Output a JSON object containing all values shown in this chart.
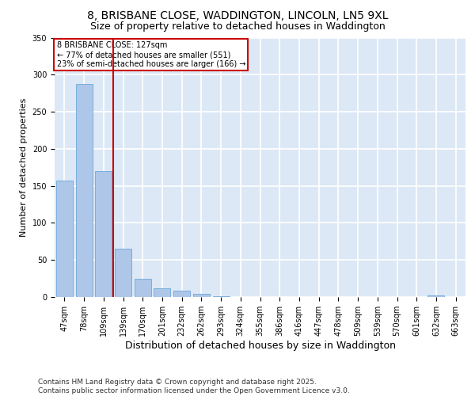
{
  "title_line1": "8, BRISBANE CLOSE, WADDINGTON, LINCOLN, LN5 9XL",
  "title_line2": "Size of property relative to detached houses in Waddington",
  "xlabel": "Distribution of detached houses by size in Waddington",
  "ylabel": "Number of detached properties",
  "categories": [
    "47sqm",
    "78sqm",
    "109sqm",
    "139sqm",
    "170sqm",
    "201sqm",
    "232sqm",
    "262sqm",
    "293sqm",
    "324sqm",
    "355sqm",
    "386sqm",
    "416sqm",
    "447sqm",
    "478sqm",
    "509sqm",
    "539sqm",
    "570sqm",
    "601sqm",
    "632sqm",
    "663sqm"
  ],
  "values": [
    157,
    287,
    170,
    65,
    25,
    12,
    9,
    4,
    1,
    0,
    0,
    0,
    0,
    0,
    0,
    0,
    0,
    0,
    0,
    2,
    0
  ],
  "bar_color": "#aec6e8",
  "bar_edge_color": "#5a9fd4",
  "vline_x": 2.5,
  "vline_color": "#cc0000",
  "annotation_text": "8 BRISBANE CLOSE: 127sqm\n← 77% of detached houses are smaller (551)\n23% of semi-detached houses are larger (166) →",
  "annotation_box_color": "#cc0000",
  "ylim": [
    0,
    350
  ],
  "yticks": [
    0,
    50,
    100,
    150,
    200,
    250,
    300,
    350
  ],
  "background_color": "#dce8f5",
  "grid_color": "#ffffff",
  "footer_text": "Contains HM Land Registry data © Crown copyright and database right 2025.\nContains public sector information licensed under the Open Government Licence v3.0.",
  "title_fontsize": 10,
  "subtitle_fontsize": 9,
  "xlabel_fontsize": 9,
  "ylabel_fontsize": 8,
  "tick_fontsize": 7,
  "footer_fontsize": 6.5
}
